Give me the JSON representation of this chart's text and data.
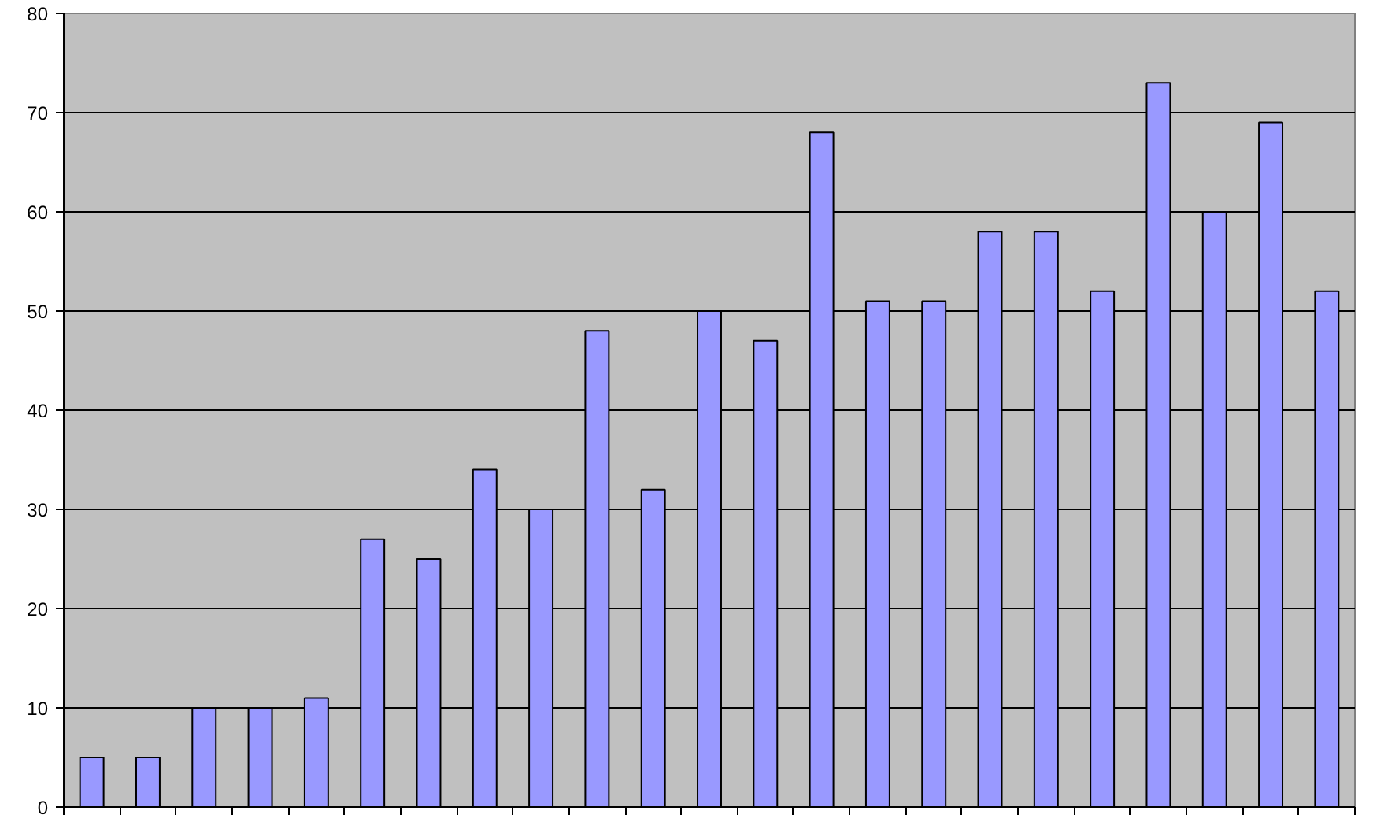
{
  "chart_data": {
    "type": "bar",
    "categories": [
      null,
      null,
      null,
      null,
      null,
      null,
      null,
      null,
      null,
      null,
      null,
      null,
      null,
      null,
      null,
      null,
      null,
      null,
      null,
      null,
      null,
      null,
      null
    ],
    "values": [
      5,
      5,
      10,
      10,
      11,
      27,
      25,
      34,
      30,
      48,
      32,
      50,
      47,
      68,
      51,
      51,
      58,
      58,
      52,
      73,
      60,
      69,
      52
    ],
    "color": "#9999ff",
    "ylim": [
      0,
      80
    ],
    "yticks": [
      0,
      10,
      20,
      30,
      40,
      50,
      60,
      70,
      80
    ],
    "grid": "y"
  }
}
